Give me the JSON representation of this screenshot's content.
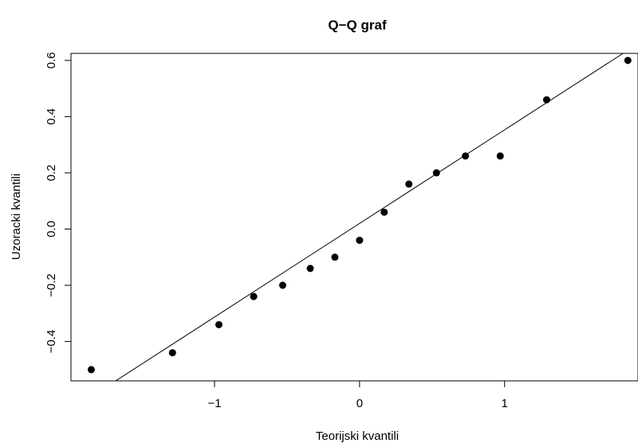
{
  "chart_data": {
    "type": "scatter",
    "title": "Q−Q graf",
    "xlabel": "Teorijski kvantili",
    "ylabel": "Uzoracki kvantili",
    "xlim": [
      -1.99,
      1.92
    ],
    "ylim": [
      -0.54,
      0.625
    ],
    "x_ticks": [
      -1,
      0,
      1
    ],
    "x_tick_labels": [
      "−1",
      "0",
      "1"
    ],
    "y_ticks": [
      -0.4,
      -0.2,
      0.0,
      0.2,
      0.4,
      0.6
    ],
    "y_tick_labels": [
      "−0.4",
      "−0.2",
      "0.0",
      "0.2",
      "0.4",
      "0.6"
    ],
    "grid": false,
    "legend": "none",
    "points": [
      {
        "x": -1.85,
        "y": -0.5
      },
      {
        "x": -1.29,
        "y": -0.44
      },
      {
        "x": -0.97,
        "y": -0.34
      },
      {
        "x": -0.73,
        "y": -0.24
      },
      {
        "x": -0.53,
        "y": -0.2
      },
      {
        "x": -0.34,
        "y": -0.14
      },
      {
        "x": -0.17,
        "y": -0.1
      },
      {
        "x": 0.0,
        "y": -0.04
      },
      {
        "x": 0.17,
        "y": 0.06
      },
      {
        "x": 0.34,
        "y": 0.16
      },
      {
        "x": 0.53,
        "y": 0.2
      },
      {
        "x": 0.73,
        "y": 0.26
      },
      {
        "x": 0.97,
        "y": 0.26
      },
      {
        "x": 1.29,
        "y": 0.46
      },
      {
        "x": 1.85,
        "y": 0.6
      }
    ],
    "reference_line": {
      "intercept": 0.02,
      "slope": 0.333
    },
    "colors": {
      "points": "#000000",
      "line": "#000000",
      "axes": "#000000"
    }
  }
}
